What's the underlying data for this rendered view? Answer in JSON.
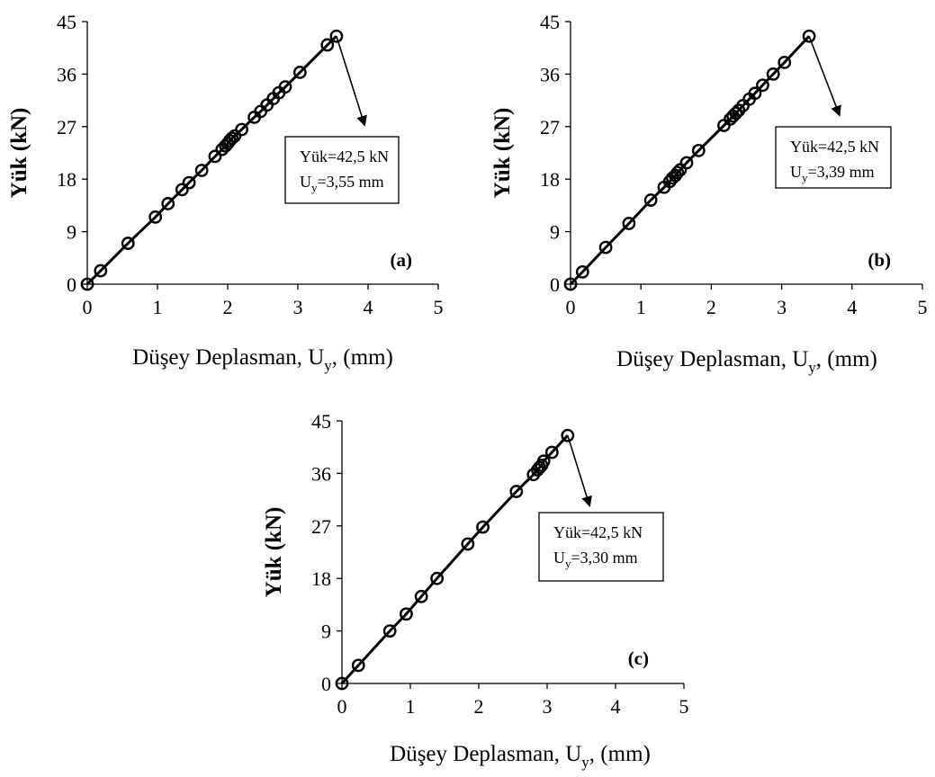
{
  "chart_data": [
    {
      "type": "line",
      "panel_label": "(a)",
      "xlabel": {
        "main": "Düşey Deplasman, U",
        "sub": "y",
        "tail": ", (mm)"
      },
      "ylabel": "Yük (kN)",
      "xlim": [
        0,
        5
      ],
      "ylim": [
        0,
        45
      ],
      "xticks": [
        "0",
        "1",
        "2",
        "3",
        "4",
        "5"
      ],
      "yticks": [
        "0",
        "9",
        "18",
        "27",
        "36",
        "45"
      ],
      "marker": "open-circle",
      "series": [
        {
          "x": [
            0,
            0.19,
            0.58,
            0.97,
            1.15,
            1.35,
            1.45,
            1.63,
            1.82,
            1.92,
            1.97,
            2.0,
            2.03,
            2.06,
            2.1,
            2.2,
            2.38,
            2.47,
            2.56,
            2.65,
            2.73,
            2.82,
            3.03,
            3.42,
            3.55
          ],
          "y": [
            0,
            2.3,
            7.0,
            11.5,
            13.8,
            16.2,
            17.4,
            19.5,
            21.9,
            23.1,
            23.7,
            24.1,
            24.6,
            25.0,
            25.4,
            26.5,
            28.6,
            29.6,
            30.7,
            31.8,
            32.8,
            33.8,
            36.3,
            41.0,
            42.5
          ]
        }
      ],
      "annotation": {
        "line1": "Yük=42,5 kN",
        "line2_main": "U",
        "line2_sub": "y",
        "line2_tail": "=3,55 mm",
        "arrow_from": [
          3.55,
          42.5
        ],
        "arrow_to": [
          3.95,
          27.3
        ]
      }
    },
    {
      "type": "line",
      "panel_label": "(b)",
      "xlabel": {
        "main": "Düşey Deplasman, U",
        "sub": "y",
        "tail": ", (mm)"
      },
      "ylabel": "Yük (kN)",
      "xlim": [
        0,
        5
      ],
      "ylim": [
        0,
        45
      ],
      "xticks": [
        "0",
        "1",
        "2",
        "3",
        "4",
        "5"
      ],
      "yticks": [
        "0",
        "9",
        "18",
        "27",
        "36",
        "45"
      ],
      "marker": "open-circle",
      "series": [
        {
          "x": [
            0,
            0.17,
            0.5,
            0.83,
            1.14,
            1.33,
            1.41,
            1.45,
            1.49,
            1.52,
            1.56,
            1.65,
            1.82,
            2.18,
            2.27,
            2.31,
            2.35,
            2.39,
            2.45,
            2.54,
            2.62,
            2.73,
            2.88,
            3.04,
            3.39
          ],
          "y": [
            0,
            2.1,
            6.3,
            10.4,
            14.4,
            16.6,
            17.6,
            18.2,
            18.6,
            19.1,
            19.6,
            20.8,
            22.9,
            27.2,
            28.3,
            28.8,
            29.3,
            29.8,
            30.6,
            31.7,
            32.7,
            34.1,
            36.0,
            38.0,
            42.5
          ]
        }
      ],
      "annotation": {
        "line1": "Yük=42,5 kN",
        "line2_main": "U",
        "line2_sub": "y",
        "line2_tail": "=3,39 mm",
        "arrow_from": [
          3.39,
          42.5
        ],
        "arrow_to": [
          3.82,
          29.0
        ]
      }
    },
    {
      "type": "line",
      "panel_label": "(c)",
      "xlabel": {
        "main": "Düşey Deplasman, U",
        "sub": "y",
        "tail": ", (mm)"
      },
      "ylabel": "Yük (kN)",
      "xlim": [
        0,
        5
      ],
      "ylim": [
        0,
        45
      ],
      "xticks": [
        "0",
        "1",
        "2",
        "3",
        "4",
        "5"
      ],
      "yticks": [
        "0",
        "9",
        "18",
        "27",
        "36",
        "45"
      ],
      "marker": "open-circle",
      "series": [
        {
          "x": [
            0,
            0.24,
            0.7,
            0.94,
            1.16,
            1.39,
            1.84,
            2.06,
            2.55,
            2.8,
            2.86,
            2.89,
            2.92,
            2.95,
            3.07,
            3.3
          ],
          "y": [
            0,
            3.1,
            9.0,
            11.9,
            14.9,
            18.0,
            23.9,
            26.8,
            32.9,
            35.8,
            36.6,
            37.0,
            37.4,
            38.1,
            39.6,
            42.5
          ]
        }
      ],
      "annotation": {
        "line1": "Yük=42,5 kN",
        "line2_main": "U",
        "line2_sub": "y",
        "line2_tail": "=3,30 mm",
        "arrow_from": [
          3.3,
          42.5
        ],
        "arrow_to": [
          3.62,
          30.5
        ]
      }
    }
  ]
}
